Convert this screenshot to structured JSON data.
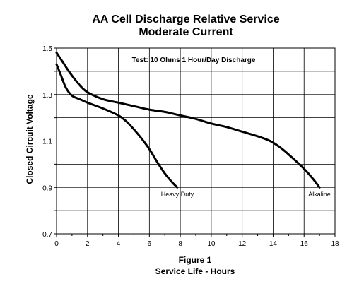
{
  "chart_data": {
    "type": "line",
    "title_line1": "AA Cell Discharge Relative Service",
    "title_line2": "Moderate Current",
    "annotation": "Test: 10 Ohms 1 Hour/Day Discharge",
    "xlabel_line1": "Figure 1",
    "xlabel_line2": "Service Life - Hours",
    "ylabel": "Closed Circuit Voltage",
    "xlim": [
      0,
      18
    ],
    "ylim": [
      0.7,
      1.5
    ],
    "x_ticks": [
      0,
      2,
      4,
      6,
      8,
      10,
      12,
      14,
      16,
      18
    ],
    "x_tick_labels": [
      "0",
      "2",
      "4",
      "6",
      "8",
      "10",
      "12",
      "14",
      "16",
      "18"
    ],
    "y_tick_labels_values": [
      0.7,
      0.9,
      1.1,
      1.3,
      1.5
    ],
    "y_tick_labels": [
      "0.7",
      "0.9",
      "1.1",
      "1.3",
      "1.5"
    ],
    "y_gridlines": [
      0.7,
      0.8,
      0.9,
      1.0,
      1.1,
      1.2,
      1.3,
      1.4,
      1.5
    ],
    "x_gridlines": [
      0,
      2,
      4,
      6,
      8,
      10,
      12,
      14,
      16,
      18
    ],
    "grid": true,
    "line_color": "#000000",
    "series": [
      {
        "name": "Alkaline",
        "points": [
          [
            0.0,
            1.48
          ],
          [
            0.4,
            1.44
          ],
          [
            0.9,
            1.39
          ],
          [
            1.5,
            1.34
          ],
          [
            2.0,
            1.31
          ],
          [
            3.0,
            1.28
          ],
          [
            4.0,
            1.265
          ],
          [
            5.0,
            1.25
          ],
          [
            6.0,
            1.235
          ],
          [
            7.0,
            1.225
          ],
          [
            8.0,
            1.21
          ],
          [
            9.0,
            1.195
          ],
          [
            10.0,
            1.175
          ],
          [
            11.0,
            1.16
          ],
          [
            12.0,
            1.14
          ],
          [
            13.0,
            1.12
          ],
          [
            13.8,
            1.1
          ],
          [
            14.5,
            1.07
          ],
          [
            15.2,
            1.03
          ],
          [
            16.0,
            0.98
          ],
          [
            16.6,
            0.935
          ],
          [
            17.0,
            0.9
          ]
        ]
      },
      {
        "name": "Heavy Duty",
        "points": [
          [
            0.0,
            1.43
          ],
          [
            0.3,
            1.38
          ],
          [
            0.6,
            1.33
          ],
          [
            1.0,
            1.295
          ],
          [
            1.5,
            1.28
          ],
          [
            2.0,
            1.265
          ],
          [
            3.0,
            1.24
          ],
          [
            4.0,
            1.21
          ],
          [
            4.5,
            1.185
          ],
          [
            5.0,
            1.15
          ],
          [
            5.5,
            1.11
          ],
          [
            6.0,
            1.065
          ],
          [
            6.5,
            1.01
          ],
          [
            7.0,
            0.96
          ],
          [
            7.5,
            0.92
          ],
          [
            7.8,
            0.9
          ]
        ]
      }
    ]
  }
}
